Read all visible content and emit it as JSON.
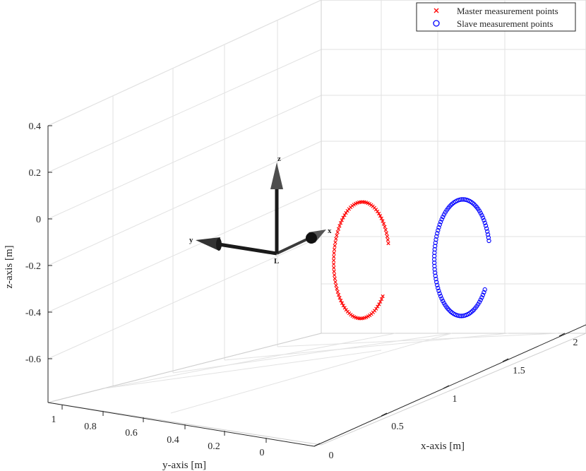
{
  "chart_data": {
    "type": "scatter",
    "projection": "3d",
    "title": "",
    "xlabel": "x-axis [m]",
    "ylabel": "y-axis [m]",
    "zlabel": "z-axis [m]",
    "x_ticks": [
      "0",
      "0.5",
      "1",
      "1.5",
      "2"
    ],
    "y_ticks": [
      "1",
      "0.8",
      "0.6",
      "0.4",
      "0.2",
      "0"
    ],
    "z_ticks": [
      "0.4",
      "0.2",
      "0",
      "-0.2",
      "-0.4",
      "-0.6"
    ],
    "grid": true,
    "legend_position": "top-right",
    "series": [
      {
        "name": "Master measurement points",
        "marker": "x",
        "color": "#ff0000",
        "shape": "arc",
        "center": [
          0.9,
          0.05,
          -0.05
        ],
        "radius": 0.25,
        "angle_range_deg": [
          15,
          320
        ],
        "n_points": 85
      },
      {
        "name": "Slave measurement points",
        "marker": "o",
        "color": "#0000ff",
        "shape": "arc",
        "center": [
          1.45,
          -0.15,
          -0.08
        ],
        "radius": 0.25,
        "angle_range_deg": [
          15,
          325
        ],
        "n_points": 95
      }
    ],
    "frame": {
      "origin_label": "L",
      "axes": [
        {
          "label": "x",
          "direction": "x"
        },
        {
          "label": "y",
          "direction": "y"
        },
        {
          "label": "z",
          "direction": "z"
        }
      ],
      "color": "#1a1a1a"
    }
  }
}
